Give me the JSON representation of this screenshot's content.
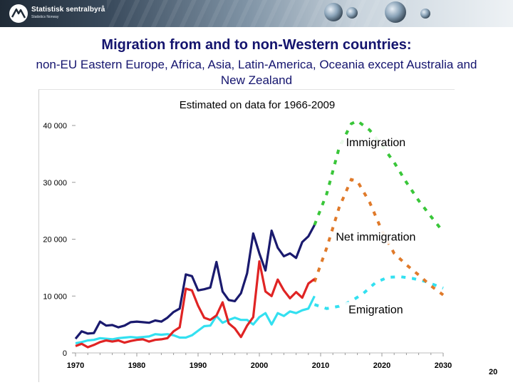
{
  "header": {
    "logo_name": "Statistisk sentralbyrå",
    "logo_subtitle": "Statistics Norway",
    "logo_icon": "ssb-logo-icon"
  },
  "slide": {
    "title": "Migration from and to non-Western countries:",
    "subtitle": "non-EU Eastern Europe, Africa, Asia, Latin-America, Oceania except Australia and New Zealand",
    "page_number": "20"
  },
  "chart_data": {
    "type": "line",
    "title": "Estimated on data for 1966-2009",
    "xlim": [
      1970,
      2030
    ],
    "ylim": [
      0,
      40000
    ],
    "grid": false,
    "xticks": [
      1970,
      1980,
      1990,
      2000,
      2010,
      2020,
      2030
    ],
    "xtick_labels": [
      "1970",
      "1980",
      "1990",
      "2000",
      "2010",
      "2020",
      "2030"
    ],
    "yticks": [
      0,
      10000,
      20000,
      30000,
      40000
    ],
    "ytick_labels": [
      "0",
      "10 000",
      "20 000",
      "30 000",
      "40 000"
    ],
    "series": [
      {
        "name": "Immigration",
        "color": "#1a1a6e",
        "projection_color": "#39c639",
        "historical": {
          "x": [
            1970,
            1971,
            1972,
            1973,
            1974,
            1975,
            1976,
            1977,
            1978,
            1979,
            1980,
            1981,
            1982,
            1983,
            1984,
            1985,
            1986,
            1987,
            1988,
            1989,
            1990,
            1991,
            1992,
            1993,
            1994,
            1995,
            1996,
            1997,
            1998,
            1999,
            2000,
            2001,
            2002,
            2003,
            2004,
            2005,
            2006,
            2007,
            2008,
            2009
          ],
          "y": [
            2500,
            3800,
            3400,
            3500,
            5500,
            4800,
            4900,
            4500,
            4800,
            5400,
            5500,
            5400,
            5300,
            5700,
            5500,
            6200,
            7200,
            7800,
            13800,
            13500,
            11000,
            11200,
            11500,
            16000,
            10800,
            9300,
            9100,
            10500,
            14000,
            21000,
            17500,
            14500,
            21500,
            18500,
            17000,
            17500,
            16700,
            19500,
            20500,
            22500
          ]
        },
        "projection": {
          "x": [
            2009,
            2011,
            2013,
            2015,
            2016,
            2018,
            2020,
            2022,
            2024,
            2026,
            2028,
            2030
          ],
          "y": [
            22500,
            28000,
            36000,
            40300,
            40800,
            39200,
            36500,
            33500,
            30000,
            26800,
            24000,
            21300
          ]
        },
        "label_position": "above-peak"
      },
      {
        "name": "Net immigration",
        "color": "#e02424",
        "projection_color": "#e07a2a",
        "historical": {
          "x": [
            1970,
            1971,
            1972,
            1973,
            1974,
            1975,
            1976,
            1977,
            1978,
            1979,
            1980,
            1981,
            1982,
            1983,
            1984,
            1985,
            1986,
            1987,
            1988,
            1989,
            1990,
            1991,
            1992,
            1993,
            1994,
            1995,
            1996,
            1997,
            1998,
            1999,
            2000,
            2001,
            2002,
            2003,
            2004,
            2005,
            2006,
            2007,
            2008,
            2009
          ],
          "y": [
            1200,
            1600,
            1000,
            1400,
            1900,
            2200,
            2000,
            2200,
            1800,
            2100,
            2300,
            2400,
            2000,
            2300,
            2400,
            2600,
            3800,
            4500,
            11300,
            11000,
            8300,
            6200,
            5800,
            6600,
            8900,
            5200,
            4300,
            2800,
            4800,
            6300,
            16100,
            10800,
            10000,
            12900,
            11000,
            9600,
            10700,
            9700,
            12200,
            13000
          ]
        },
        "projection": {
          "x": [
            2009,
            2011,
            2013,
            2015,
            2016,
            2018,
            2020,
            2022,
            2024,
            2026,
            2028,
            2030
          ],
          "y": [
            12500,
            18500,
            25500,
            30500,
            30200,
            26500,
            21500,
            17500,
            15500,
            13700,
            11800,
            10200
          ]
        },
        "label_position": "mid-right"
      },
      {
        "name": "Emigration",
        "color": "#33e0f0",
        "projection_color": "#33e0f0",
        "historical": {
          "x": [
            1970,
            1971,
            1972,
            1973,
            1974,
            1975,
            1976,
            1977,
            1978,
            1979,
            1980,
            1981,
            1982,
            1983,
            1984,
            1985,
            1986,
            1987,
            1988,
            1989,
            1990,
            1991,
            1992,
            1993,
            1994,
            1995,
            1996,
            1997,
            1998,
            1999,
            2000,
            2001,
            2002,
            2003,
            2004,
            2005,
            2006,
            2007,
            2008,
            2009
          ],
          "y": [
            1700,
            1900,
            2200,
            2300,
            2600,
            2500,
            2400,
            2600,
            2700,
            2800,
            2700,
            2800,
            2900,
            3300,
            3200,
            3300,
            3100,
            2700,
            2700,
            3100,
            3900,
            4700,
            4800,
            6500,
            5300,
            5800,
            6200,
            5800,
            5800,
            5000,
            6300,
            7000,
            5000,
            7000,
            6500,
            7300,
            7000,
            7500,
            7800,
            10000
          ]
        },
        "projection": {
          "x": [
            2009,
            2011,
            2013,
            2015,
            2017,
            2019,
            2021,
            2023,
            2025,
            2027,
            2030
          ],
          "y": [
            8500,
            7800,
            8200,
            9100,
            10500,
            12400,
            13300,
            13400,
            13100,
            12600,
            11400
          ]
        },
        "label_position": "below"
      }
    ]
  }
}
